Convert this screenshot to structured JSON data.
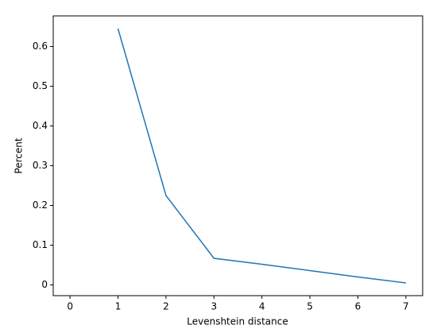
{
  "chart_data": {
    "type": "line",
    "x_label": "Levenshtein distance",
    "y_label": "Percent",
    "x": [
      1,
      2,
      3,
      4,
      5,
      6,
      7
    ],
    "series": [
      {
        "color": "#1f77b4",
        "values": [
          0.645,
          0.225,
          0.067,
          0.052,
          0.036,
          0.02,
          0.005
        ]
      }
    ],
    "xlim": [
      -0.35,
      7.35
    ],
    "xticks": [
      0,
      1,
      2,
      3,
      4,
      5,
      6,
      7
    ],
    "ylim": [
      -0.027,
      0.677
    ],
    "yticks": [
      0.0,
      0.1,
      0.2,
      0.3,
      0.4,
      0.5,
      0.6
    ]
  }
}
